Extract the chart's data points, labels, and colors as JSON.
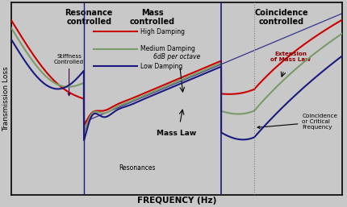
{
  "xlabel": "FREQUENCY (Hz)",
  "ylabel": "Transmission Loss",
  "bg_color": "#c8c8c8",
  "colors": {
    "high_damping": "#cc0000",
    "medium_damping": "#7a9a6a",
    "low_damping": "#1a1a80",
    "divider": "#1a1a80"
  },
  "labels": {
    "region1": "Resonance\ncontrolled",
    "region2": "Mass\ncontrolled",
    "region3": "Coincidence\ncontrolled",
    "high_damping": "High Damping",
    "medium_damping": "Medium Damping",
    "low_damping": "Low Damping",
    "stiffness": "Stiffness\nControlled",
    "resonances": "Resonances",
    "mass_law": "Mass Law",
    "sixdb": "6dB per octave",
    "extension": "Extension\nof Mass Law",
    "coincidence": "Coincidence\nor Critical\nFrequency"
  },
  "div1": 0.22,
  "div2": 0.635,
  "crit": 0.735,
  "figsize": [
    4.31,
    2.57
  ],
  "dpi": 100
}
